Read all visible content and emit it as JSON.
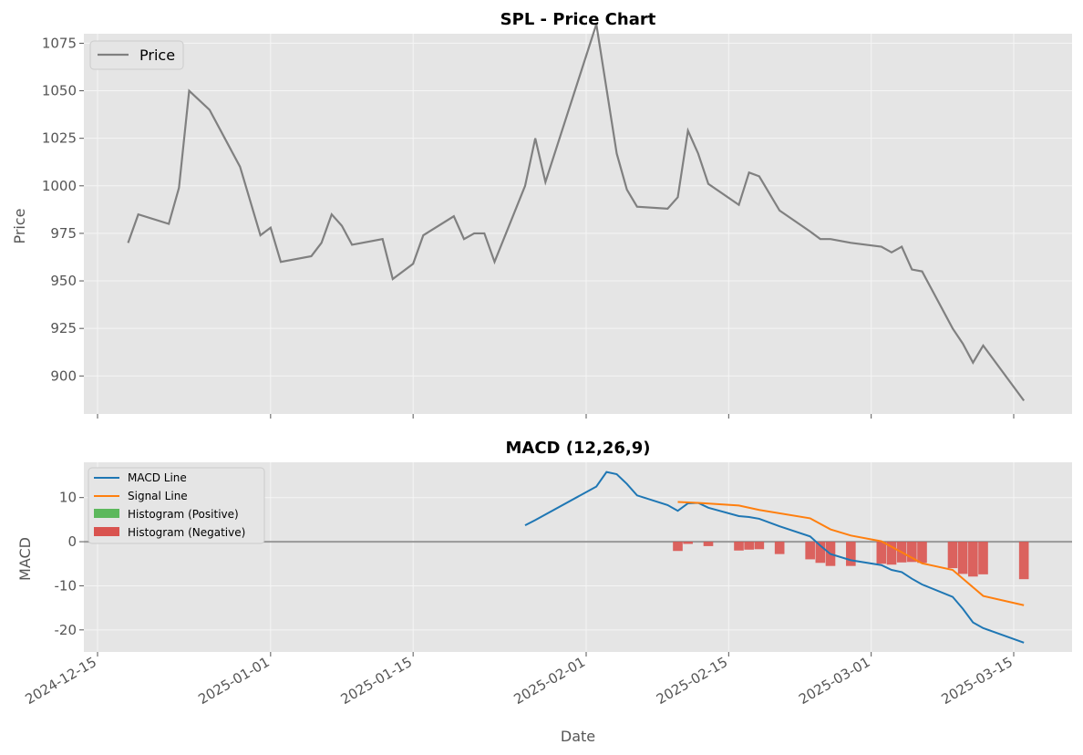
{
  "colors": {
    "price": "#808080",
    "macd": "#1f77b4",
    "signal": "#ff7f0e",
    "hist_pos": "#5cb85c",
    "hist_neg": "#d9534f",
    "zero": "#999999",
    "bg": "#e5e5e5",
    "grid": "#f5f5f5"
  },
  "chart_data": [
    {
      "type": "line",
      "title": "SPL - Price Chart",
      "xlabel": "",
      "ylabel": "Price",
      "ylim": [
        880,
        1080
      ],
      "yticks": [
        900,
        925,
        950,
        975,
        1000,
        1025,
        1050,
        1075
      ],
      "legend": {
        "position": "top-left",
        "entries": [
          "Price"
        ]
      },
      "series": [
        {
          "name": "Price",
          "x": [
            "2024-12-18",
            "2024-12-19",
            "2024-12-22",
            "2024-12-23",
            "2024-12-24",
            "2024-12-26",
            "2024-12-29",
            "2024-12-31",
            "2025-01-01",
            "2025-01-02",
            "2025-01-05",
            "2025-01-06",
            "2025-01-07",
            "2025-01-08",
            "2025-01-09",
            "2025-01-12",
            "2025-01-13",
            "2025-01-15",
            "2025-01-16",
            "2025-01-19",
            "2025-01-20",
            "2025-01-21",
            "2025-01-22",
            "2025-01-23",
            "2025-01-26",
            "2025-01-27",
            "2025-01-28",
            "2025-02-02",
            "2025-02-04",
            "2025-02-05",
            "2025-02-06",
            "2025-02-09",
            "2025-02-10",
            "2025-02-11",
            "2025-02-12",
            "2025-02-13",
            "2025-02-16",
            "2025-02-17",
            "2025-02-18",
            "2025-02-20",
            "2025-02-23",
            "2025-02-24",
            "2025-02-25",
            "2025-02-27",
            "2025-03-02",
            "2025-03-03",
            "2025-03-04",
            "2025-03-05",
            "2025-03-06",
            "2025-03-09",
            "2025-03-10",
            "2025-03-11",
            "2025-03-12",
            "2025-03-16"
          ],
          "values": [
            970,
            985,
            980,
            999,
            1050,
            1040,
            1010,
            974,
            978,
            960,
            963,
            970,
            985,
            979,
            969,
            972,
            951,
            959,
            974,
            984,
            972,
            975,
            975,
            960,
            1000,
            1025,
            1002,
            1085,
            1017,
            998,
            989,
            988,
            994,
            1029,
            1017,
            1001,
            990,
            1007,
            1005,
            987,
            976,
            972,
            972,
            970,
            968,
            965,
            968,
            956,
            955,
            925,
            917,
            907,
            916,
            887
          ]
        }
      ]
    },
    {
      "type": "line",
      "title": "MACD (12,26,9)",
      "xlabel": "Date",
      "ylabel": "MACD",
      "ylim": [
        -25,
        18
      ],
      "yticks": [
        -20,
        -10,
        0,
        10
      ],
      "xticks": [
        "2024-12-15",
        "2025-01-01",
        "2025-01-15",
        "2025-02-01",
        "2025-02-15",
        "2025-03-01",
        "2025-03-15"
      ],
      "legend": {
        "position": "top-left",
        "entries": [
          "MACD Line",
          "Signal Line",
          "Histogram (Positive)",
          "Histogram (Negative)"
        ]
      },
      "series": [
        {
          "name": "MACD Line",
          "x": [
            "2025-01-26",
            "2025-01-27",
            "2025-02-02",
            "2025-02-03",
            "2025-02-04",
            "2025-02-05",
            "2025-02-06",
            "2025-02-09",
            "2025-02-10",
            "2025-02-11",
            "2025-02-12",
            "2025-02-13",
            "2025-02-16",
            "2025-02-17",
            "2025-02-18",
            "2025-02-20",
            "2025-02-23",
            "2025-02-24",
            "2025-02-25",
            "2025-02-27",
            "2025-03-02",
            "2025-03-03",
            "2025-03-04",
            "2025-03-05",
            "2025-03-06",
            "2025-03-09",
            "2025-03-10",
            "2025-03-11",
            "2025-03-12",
            "2025-03-16"
          ],
          "values": [
            3.7,
            4.9,
            12.5,
            15.8,
            15.3,
            13.1,
            10.5,
            8.3,
            7.0,
            8.7,
            8.8,
            7.7,
            5.8,
            5.6,
            5.2,
            3.5,
            1.2,
            -0.9,
            -2.8,
            -4.2,
            -5.3,
            -6.4,
            -6.9,
            -8.4,
            -9.7,
            -12.5,
            -15.2,
            -18.3,
            -19.6,
            -22.9
          ]
        },
        {
          "name": "Signal Line",
          "x": [
            "2025-02-10",
            "2025-02-12",
            "2025-02-16",
            "2025-02-18",
            "2025-02-23",
            "2025-02-25",
            "2025-02-27",
            "2025-03-02",
            "2025-03-06",
            "2025-03-09",
            "2025-03-12",
            "2025-03-16"
          ],
          "values": [
            9.0,
            8.8,
            8.2,
            7.2,
            5.3,
            2.8,
            1.4,
            0.1,
            -4.9,
            -6.4,
            -12.3,
            -14.4
          ]
        },
        {
          "name": "Histogram (Positive)",
          "x": [],
          "values": []
        },
        {
          "name": "Histogram (Negative)",
          "x": [
            "2025-02-10",
            "2025-02-11",
            "2025-02-13",
            "2025-02-16",
            "2025-02-17",
            "2025-02-18",
            "2025-02-20",
            "2025-02-23",
            "2025-02-24",
            "2025-02-25",
            "2025-02-27",
            "2025-03-02",
            "2025-03-03",
            "2025-03-04",
            "2025-03-05",
            "2025-03-06",
            "2025-03-09",
            "2025-03-10",
            "2025-03-11",
            "2025-03-12",
            "2025-03-16"
          ],
          "values": [
            -2.1,
            -0.5,
            -1.0,
            -2.0,
            -1.8,
            -1.7,
            -2.8,
            -4.0,
            -4.8,
            -5.5,
            -5.5,
            -5.0,
            -5.2,
            -4.7,
            -4.6,
            -4.8,
            -6.0,
            -7.3,
            -7.9,
            -7.4,
            -8.5
          ]
        }
      ]
    }
  ]
}
